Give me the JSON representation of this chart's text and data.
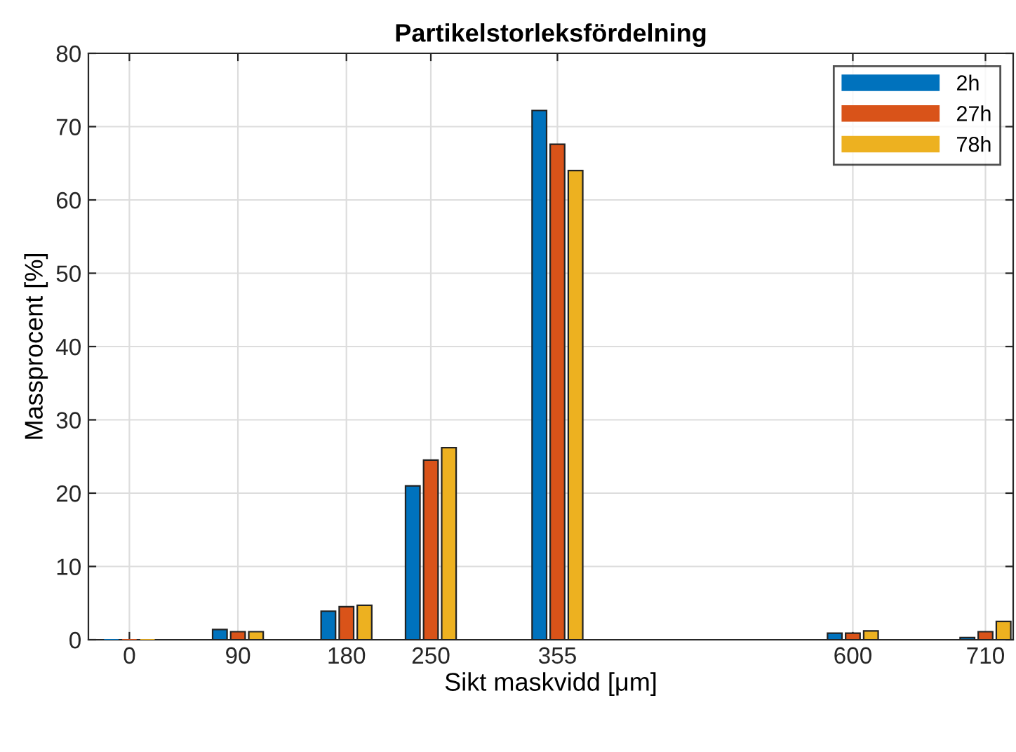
{
  "chart_data": {
    "type": "bar",
    "title": "Partikelstorleksfördelning",
    "xlabel": "Sikt maskvidd [μm]",
    "ylabel": "Massprocent [%]",
    "x": [
      0,
      90,
      180,
      250,
      355,
      600,
      710
    ],
    "series": [
      {
        "name": "2h",
        "color": "#0072bd",
        "values": [
          0,
          1.4,
          3.9,
          21,
          72.2,
          0.9,
          0.3
        ]
      },
      {
        "name": "27h",
        "color": "#d95319",
        "values": [
          0,
          1.1,
          4.5,
          24.5,
          67.6,
          0.9,
          1.1
        ]
      },
      {
        "name": "78h",
        "color": "#edb120",
        "values": [
          0,
          1.1,
          4.7,
          26.2,
          64.0,
          1.2,
          2.5
        ]
      }
    ],
    "xlim": [
      -34,
      733
    ],
    "xticks": [
      0,
      90,
      180,
      250,
      355,
      600,
      710
    ],
    "ylim": [
      0,
      80
    ],
    "yticks": [
      0,
      10,
      20,
      30,
      40,
      50,
      60,
      70,
      80
    ],
    "grid": true,
    "legend": "top right"
  }
}
